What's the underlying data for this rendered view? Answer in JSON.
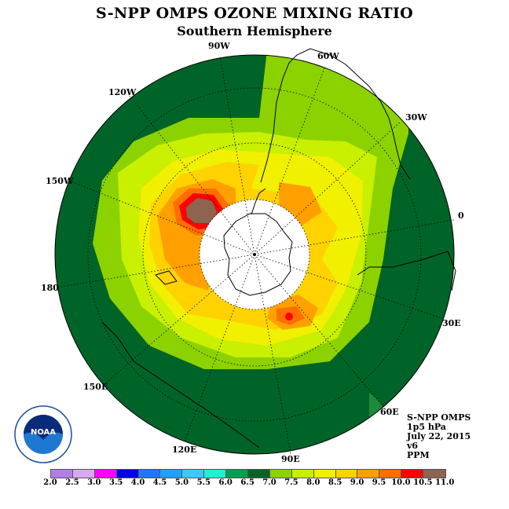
{
  "title": "S-NPP OMPS OZONE MIXING RATIO",
  "subtitle": "Southern Hemisphere",
  "lon_labels": {
    "w90": "90W",
    "w60": "60W",
    "w120": "120W",
    "w30": "30W",
    "w150": "150W",
    "zero": "0",
    "e180": "180",
    "e30": "30E",
    "e150": "150E",
    "e60": "60E",
    "e120": "120E",
    "e90": "90E"
  },
  "info": {
    "instrument": "S-NPP OMPS",
    "level": "1p5 hPa",
    "date": "July 22, 2015",
    "version": "v6",
    "units": "PPM"
  },
  "logo_text": "NOAA",
  "colorbar": {
    "ticks": [
      "2.0",
      "2.5",
      "3.0",
      "3.5",
      "4.0",
      "4.5",
      "5.0",
      "5.5",
      "6.0",
      "6.5",
      "7.0",
      "7.5",
      "8.0",
      "8.5",
      "9.0",
      "9.5",
      "10.0",
      "10.5",
      "11.0"
    ],
    "colors": [
      "#b07ee6",
      "#d8a8f0",
      "#ff00ff",
      "#0000e6",
      "#1e78ff",
      "#1ea0ff",
      "#3cc8ff",
      "#1ef0d2",
      "#00a050",
      "#006428",
      "#8cd200",
      "#c8f000",
      "#f0f000",
      "#ffd200",
      "#ffa000",
      "#ff6e00",
      "#ff0000",
      "#8c6450"
    ]
  },
  "colors": {
    "background_field": "#006428",
    "ring_7_7_5": "#8cd200",
    "ring_7_5_8": "#c8f000",
    "ring_8_8_5": "#f0f000",
    "ring_8_5_9": "#ffd200",
    "ring_9_9_5": "#ffa000",
    "ring_9_5_10": "#ff6e00",
    "max_10_10_5": "#ff0000",
    "max_10_5_11": "#8c6450"
  }
}
